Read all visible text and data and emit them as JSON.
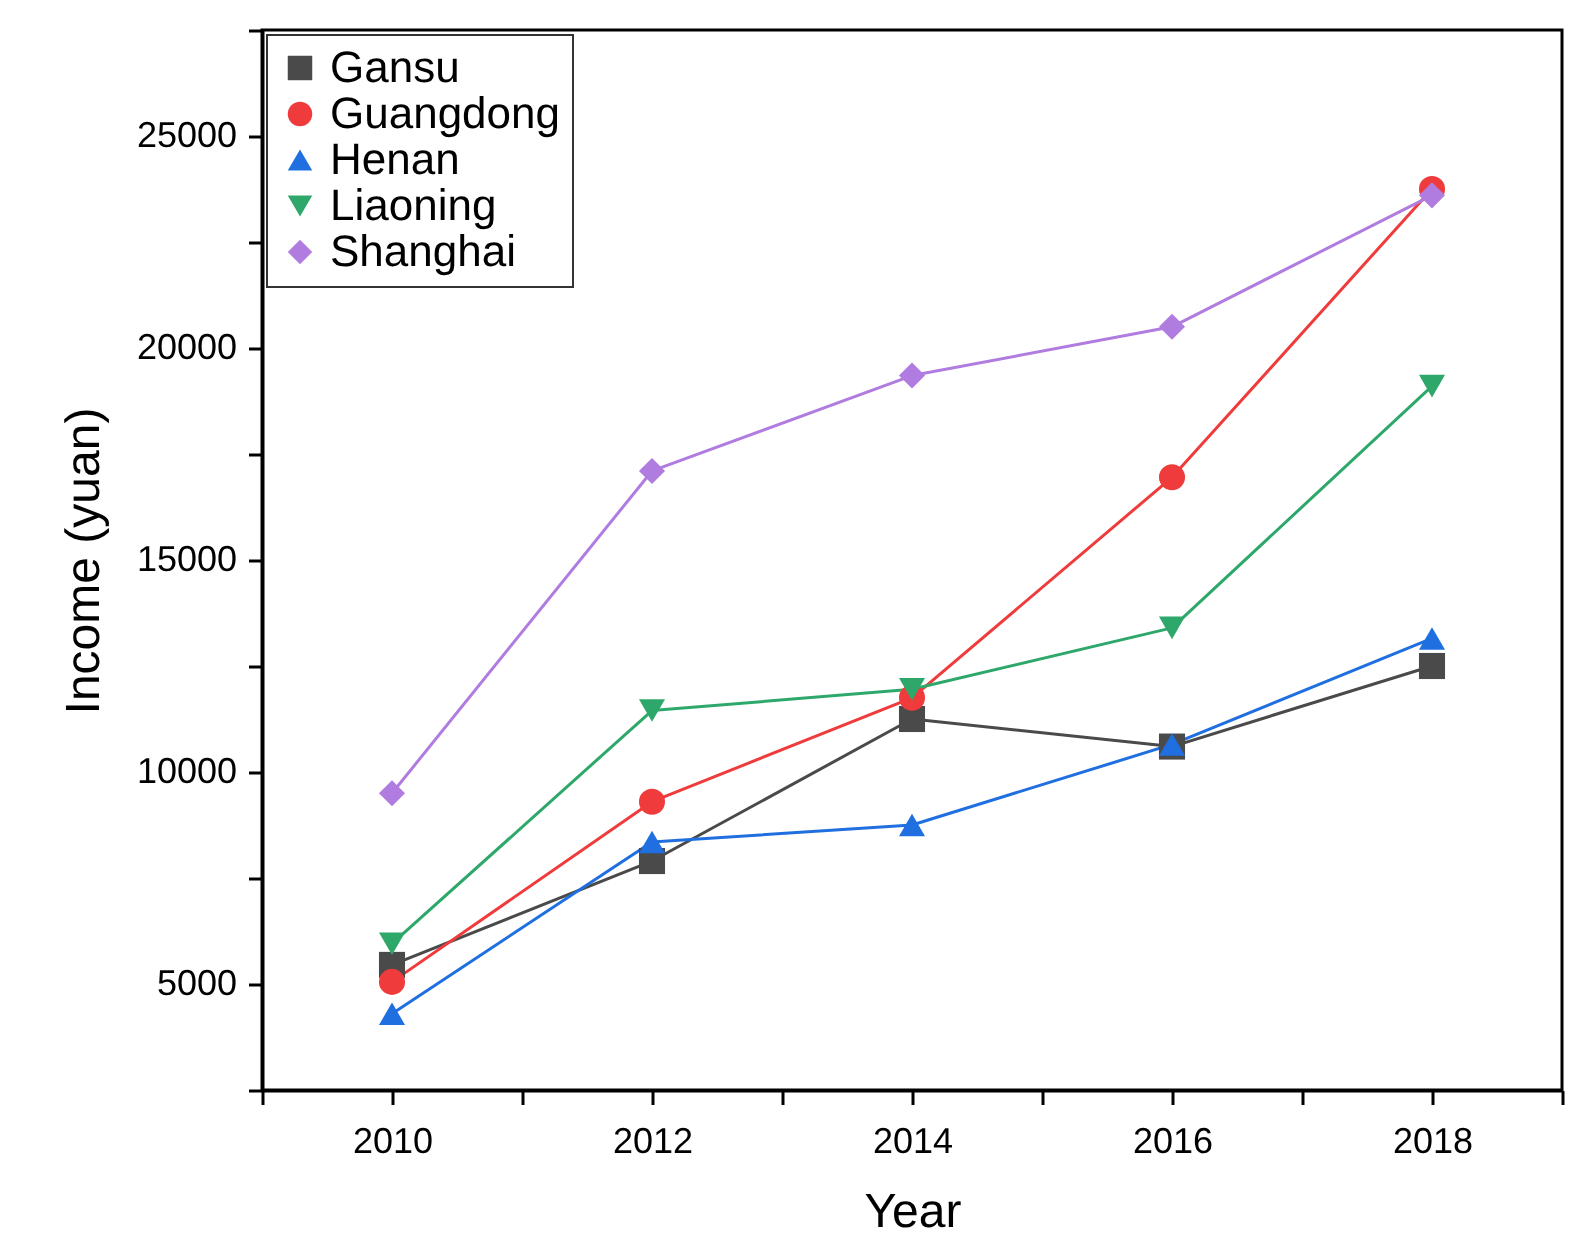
{
  "chart_data": {
    "type": "line",
    "xlabel": "Year",
    "ylabel": "Income (yuan)",
    "x": [
      2010,
      2012,
      2014,
      2016,
      2018
    ],
    "xlim": [
      2009,
      2019
    ],
    "xticks": [
      {
        "value": 2009,
        "label": null
      },
      2010,
      {
        "value": 2011,
        "label": null
      },
      2012,
      {
        "value": 2013,
        "label": null
      },
      2014,
      {
        "value": 2015,
        "label": null
      },
      2016,
      {
        "value": 2017,
        "label": null
      },
      2018,
      {
        "value": 2019,
        "label": null
      }
    ],
    "ylim": [
      2500,
      27500
    ],
    "yticks": [
      {
        "value": 2500,
        "label": null
      },
      5000,
      {
        "value": 7500,
        "label": null
      },
      10000,
      {
        "value": 12500,
        "label": null
      },
      15000,
      {
        "value": 17500,
        "label": null
      },
      20000,
      {
        "value": 22500,
        "label": null
      },
      25000,
      {
        "value": 27500,
        "label": null
      }
    ],
    "grid": false,
    "legend": "top left",
    "line_style": "solid",
    "series": [
      {
        "name": "Gansu",
        "color": "#4a4a4a",
        "marker": "square",
        "values": [
          5450,
          7900,
          11250,
          10600,
          12500
        ]
      },
      {
        "name": "Guangdong",
        "color": "#ef3b3b",
        "marker": "circle",
        "values": [
          5050,
          9300,
          11750,
          16950,
          23750
        ]
      },
      {
        "name": "Henan",
        "color": "#1f6fe0",
        "marker": "triangle",
        "values": [
          4300,
          8350,
          8750,
          10650,
          13150
        ]
      },
      {
        "name": "Liaoning",
        "color": "#2ea86a",
        "marker": "triangle-down",
        "values": [
          5950,
          11450,
          11950,
          13400,
          19100
        ]
      },
      {
        "name": "Shanghai",
        "color": "#b07ce0",
        "marker": "diamond",
        "values": [
          9500,
          17100,
          19350,
          20500,
          23600
        ]
      }
    ]
  }
}
